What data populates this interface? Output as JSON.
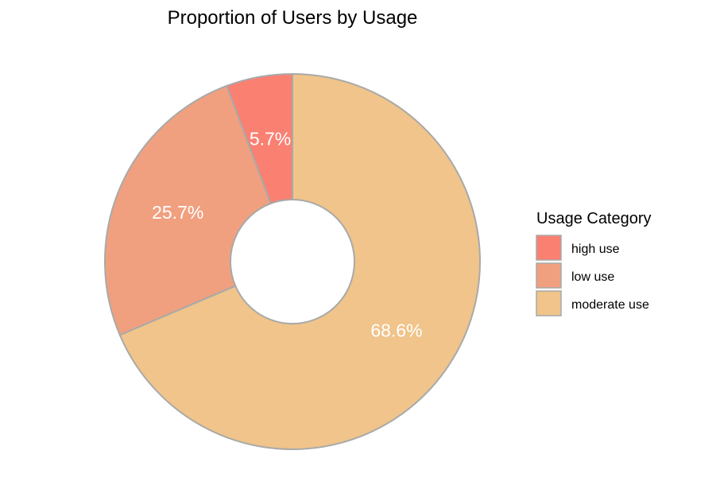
{
  "chart_data": {
    "type": "pie",
    "style": "donut",
    "title": "Proportion of Users by Usage",
    "legend_title": "Usage Category",
    "legend_position": "right",
    "slices": [
      {
        "label": "high use",
        "value": 5.7,
        "value_label": "5.7%",
        "color": "#FA8072"
      },
      {
        "label": "low use",
        "value": 25.7,
        "value_label": "25.7%",
        "color": "#F0A07F"
      },
      {
        "label": "moderate use",
        "value": 68.6,
        "value_label": "68.6%",
        "color": "#F0C48A"
      }
    ],
    "border_color": "#A9A9A9"
  }
}
